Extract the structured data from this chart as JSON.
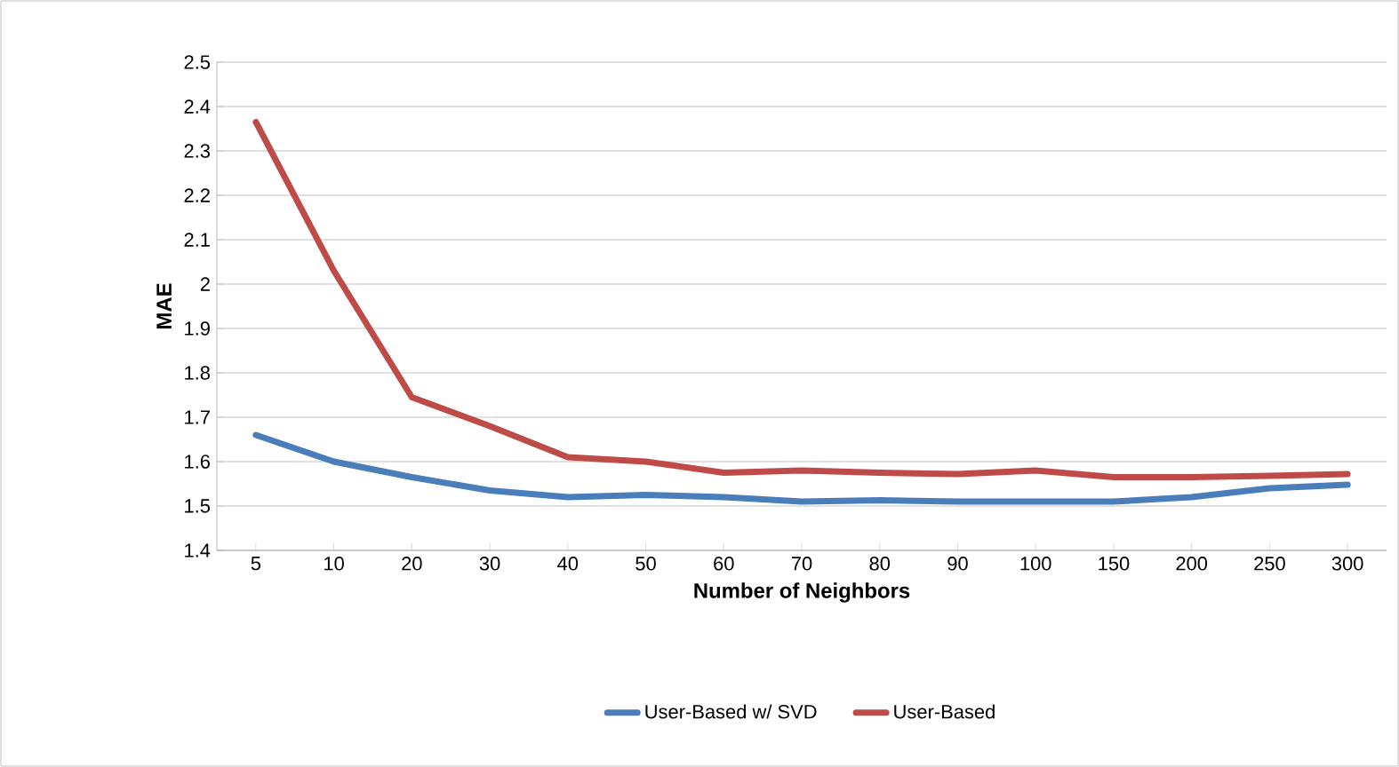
{
  "chart_data": {
    "type": "line",
    "xlabel": "Number of Neighbors",
    "ylabel": "MAE",
    "categories": [
      "5",
      "10",
      "20",
      "30",
      "40",
      "50",
      "60",
      "70",
      "80",
      "90",
      "100",
      "150",
      "200",
      "250",
      "300"
    ],
    "series": [
      {
        "name": "User-Based w/ SVD",
        "color": "#4a7ebb",
        "values": [
          1.66,
          1.6,
          1.565,
          1.535,
          1.52,
          1.525,
          1.52,
          1.51,
          1.513,
          1.51,
          1.51,
          1.51,
          1.52,
          1.54,
          1.548
        ]
      },
      {
        "name": "User-Based",
        "color": "#be4b48",
        "values": [
          2.365,
          2.03,
          1.745,
          1.68,
          1.61,
          1.6,
          1.575,
          1.58,
          1.575,
          1.572,
          1.58,
          1.565,
          1.565,
          1.568,
          1.572
        ]
      }
    ],
    "ylim": [
      1.4,
      2.5
    ],
    "yticks": [
      1.4,
      1.5,
      1.6,
      1.7,
      1.8,
      1.9,
      2,
      2.1,
      2.2,
      2.3,
      2.4,
      2.5
    ],
    "grid": "y",
    "legend": "bottom"
  }
}
